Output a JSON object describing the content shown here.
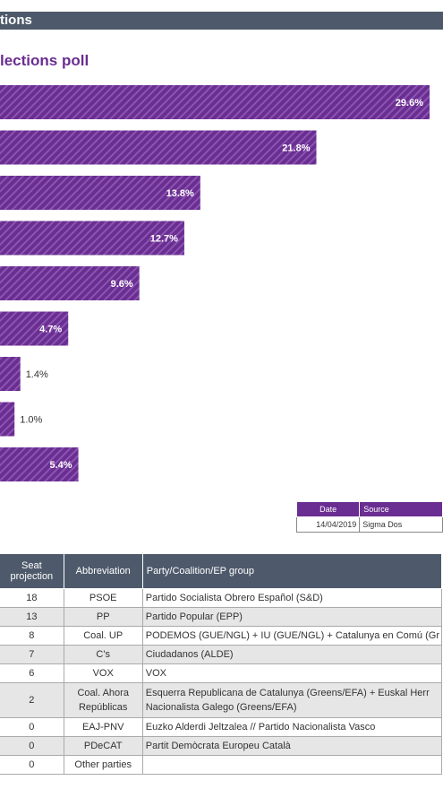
{
  "header": {
    "title": "tions"
  },
  "chart_data": {
    "type": "bar",
    "orientation": "horizontal",
    "title": "lections poll",
    "values": [
      29.6,
      21.8,
      13.8,
      12.7,
      9.6,
      4.7,
      1.4,
      1.0,
      5.4
    ],
    "value_labels": [
      "29.6%",
      "21.8%",
      "13.8%",
      "12.7%",
      "9.6%",
      "4.7%",
      "1.4%",
      "1.0%",
      "5.4%"
    ],
    "bar_color": "#6a2d91",
    "xlim": [
      0,
      30
    ]
  },
  "source_table": {
    "headers": {
      "date": "Date",
      "source": "Source"
    },
    "date": "14/04/2019",
    "source": "Sigma Dos"
  },
  "seat_table": {
    "headers": {
      "seats": "Seat projection",
      "abbr": "Abbreviation",
      "party": "Party/Coalition/EP group"
    },
    "rows": [
      {
        "seats": "18",
        "abbr": "PSOE",
        "party": "Partido Socialista Obrero Español (S&D)"
      },
      {
        "seats": "13",
        "abbr": "PP",
        "party": "Partido Popular (EPP)"
      },
      {
        "seats": "8",
        "abbr": "Coal. UP",
        "party": "PODEMOS (GUE/NGL) + IU (GUE/NGL) + Catalunya en Comú (Gr"
      },
      {
        "seats": "7",
        "abbr": "C's",
        "party": "Ciudadanos (ALDE)"
      },
      {
        "seats": "6",
        "abbr": "VOX",
        "party": "VOX"
      },
      {
        "seats": "2",
        "abbr": "Coal. Ahora Repúblicas",
        "party": "Esquerra Republicana de Catalunya (Greens/EFA) + Euskal Herr Nacionalista Galego (Greens/EFA)"
      },
      {
        "seats": "0",
        "abbr": "EAJ-PNV",
        "party": "Euzko Alderdi Jeltzalea // Partido Nacionalista Vasco"
      },
      {
        "seats": "0",
        "abbr": "PDeCAT",
        "party": "Partit Demòcrata Europeu Català"
      },
      {
        "seats": "0",
        "abbr": "Other parties",
        "party": ""
      }
    ]
  }
}
